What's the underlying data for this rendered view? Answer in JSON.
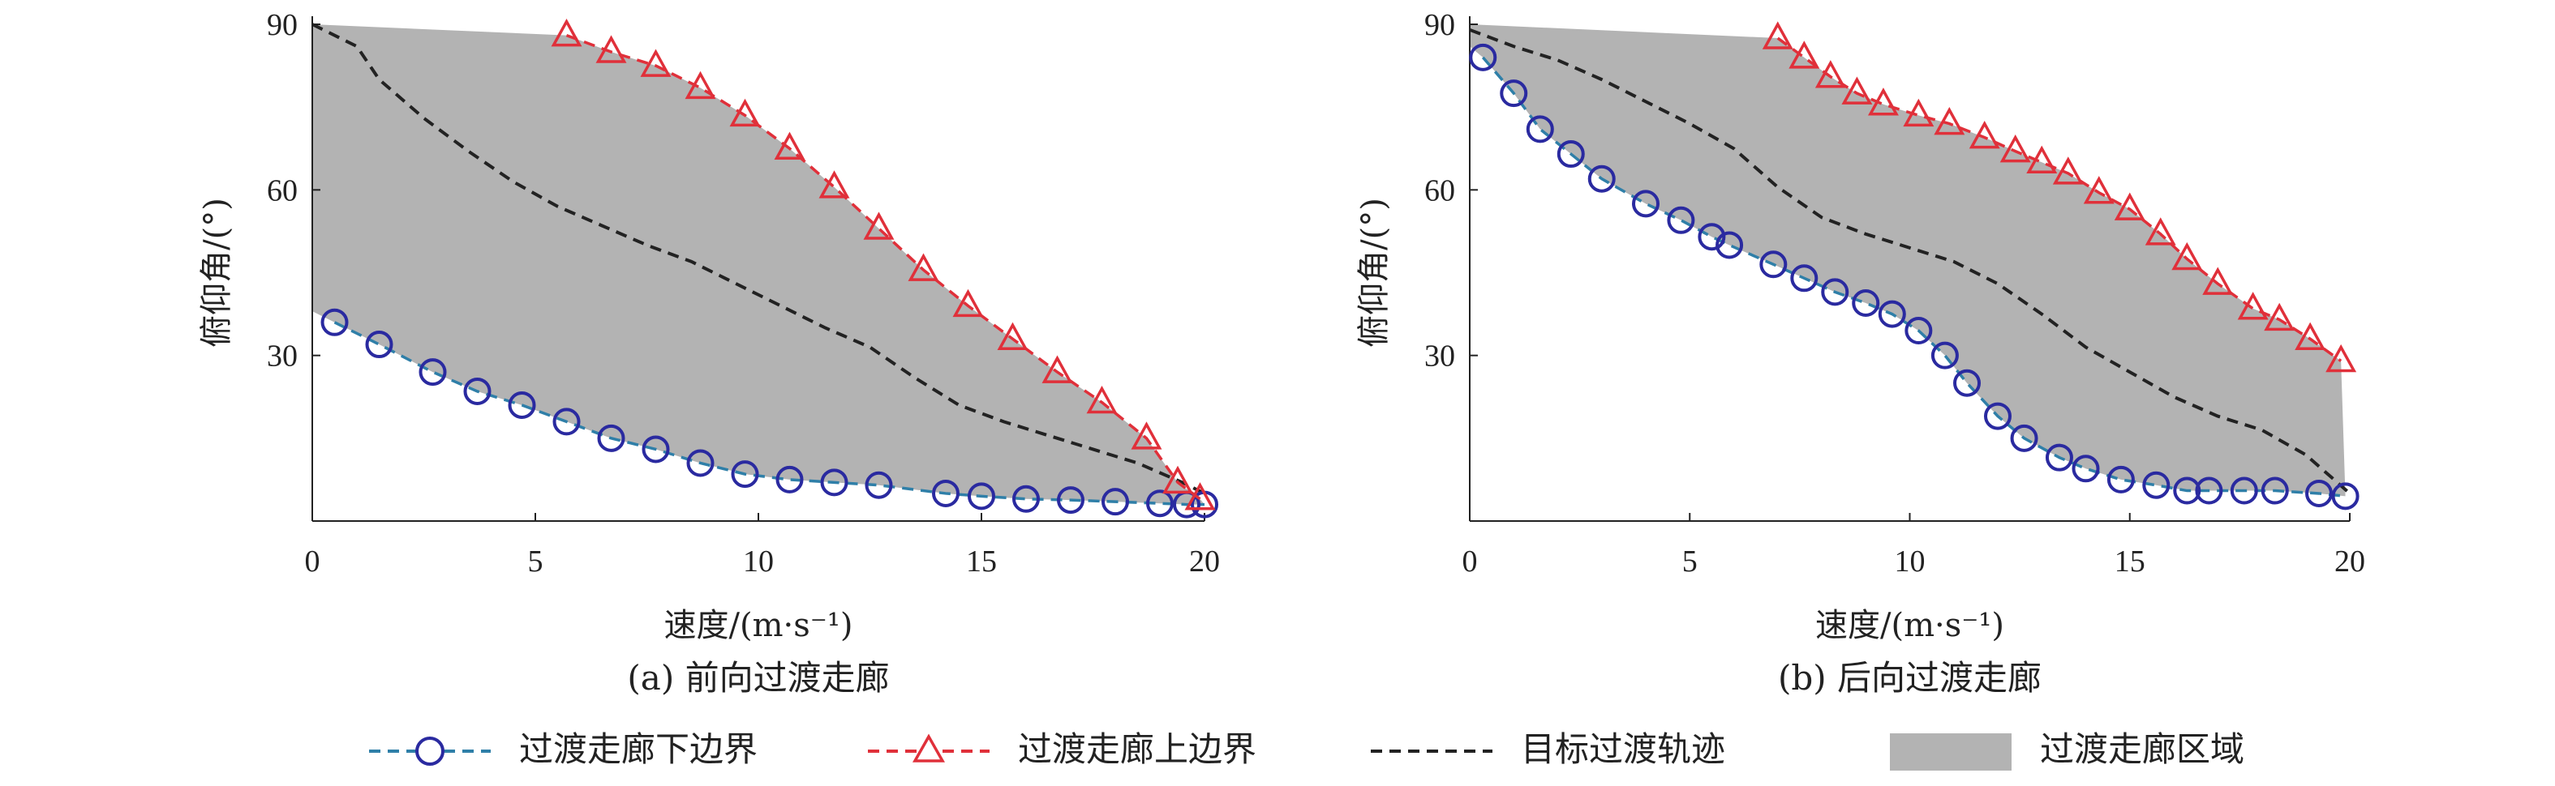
{
  "figure": {
    "legend": [
      {
        "key": "lower",
        "label": "过渡走廊下边界",
        "marker": "circle",
        "line_style": "dashed",
        "color": "#2a2aa0",
        "line_color": "#2f7fa8"
      },
      {
        "key": "upper",
        "label": "过渡走廊上边界",
        "marker": "triangle",
        "line_style": "dashed",
        "color": "#e0303a",
        "line_color": "#e0303a"
      },
      {
        "key": "target",
        "label": "目标过渡轨迹",
        "marker": "none",
        "line_style": "dashed",
        "color": "#222222"
      },
      {
        "key": "region",
        "label": "过渡走廊区域",
        "marker": "patch",
        "color": "#b3b3b3"
      }
    ]
  },
  "chart_data": [
    {
      "type": "line",
      "caption": "(a) 前向过渡走廊",
      "xlabel": "速度/(m·s⁻¹)",
      "ylabel": "俯仰角/(°)",
      "xlim": [
        0,
        20
      ],
      "ylim": [
        0,
        90
      ],
      "xticks": [
        "0",
        "5",
        "10",
        "15",
        "20"
      ],
      "yticks": [
        "30",
        "60",
        "90"
      ],
      "grid": false,
      "series": [
        {
          "name": "过渡走廊下边界",
          "x": [
            0.5,
            1.5,
            2.7,
            3.7,
            4.7,
            5.7,
            6.7,
            7.7,
            8.7,
            9.7,
            10.7,
            11.7,
            12.7,
            14.2,
            15.0,
            16.0,
            17.0,
            18.0,
            19.0,
            19.6,
            20.0
          ],
          "y": [
            36,
            32,
            27,
            23.5,
            21,
            18,
            15,
            13,
            10.5,
            8.5,
            7.5,
            7,
            6.5,
            5,
            4.5,
            4,
            3.8,
            3.5,
            3.2,
            3,
            3
          ]
        },
        {
          "name": "过渡走廊上边界",
          "x": [
            5.7,
            6.7,
            7.7,
            8.7,
            9.7,
            10.7,
            11.7,
            12.7,
            13.7,
            14.7,
            15.7,
            16.7,
            17.7,
            18.7,
            19.4,
            19.9
          ],
          "y": [
            88,
            85,
            82.5,
            78.5,
            73.5,
            67.5,
            60.5,
            53,
            45.5,
            39,
            33,
            27,
            21.5,
            15,
            7,
            4
          ]
        },
        {
          "name": "目标过渡轨迹",
          "x": [
            0,
            1.0,
            1.5,
            2.5,
            3.5,
            4.5,
            5.5,
            6.5,
            7.5,
            8.5,
            9.5,
            10.5,
            11.5,
            12.5,
            13.5,
            14.5,
            15.5,
            16.5,
            17.5,
            18.5,
            19.5,
            20.0
          ],
          "y": [
            90,
            86,
            80,
            73,
            67,
            61.5,
            57,
            53.5,
            50,
            47,
            43,
            39,
            35,
            31.5,
            26,
            21,
            18,
            15.5,
            13,
            10.5,
            7,
            5
          ]
        }
      ]
    },
    {
      "type": "line",
      "caption": "(b) 后向过渡走廊",
      "xlabel": "速度/(m·s⁻¹)",
      "ylabel": "俯仰角/(°)",
      "xlim": [
        0,
        20
      ],
      "ylim": [
        0,
        90
      ],
      "xticks": [
        "0",
        "5",
        "10",
        "15",
        "20"
      ],
      "yticks": [
        "30",
        "60",
        "90"
      ],
      "grid": false,
      "series": [
        {
          "name": "过渡走廊下边界",
          "x": [
            0.3,
            1.0,
            1.6,
            2.3,
            3.0,
            4.0,
            4.8,
            5.5,
            5.9,
            6.9,
            7.6,
            8.3,
            9.0,
            9.6,
            10.2,
            10.8,
            11.3,
            12.0,
            12.6,
            13.4,
            14.0,
            14.8,
            15.6,
            16.3,
            16.8,
            17.6,
            18.3,
            19.3,
            19.9
          ],
          "y": [
            84,
            77.5,
            71,
            66.5,
            62,
            57.5,
            54.5,
            51.5,
            50,
            46.5,
            44,
            41.5,
            39.5,
            37.5,
            34.5,
            30,
            25,
            19,
            15,
            11.5,
            9.5,
            7.5,
            6.5,
            5.5,
            5.5,
            5.5,
            5.5,
            5,
            4.5
          ]
        },
        {
          "name": "过渡走廊上边界",
          "x": [
            7.0,
            7.6,
            8.2,
            8.8,
            9.4,
            10.2,
            10.9,
            11.7,
            12.4,
            13.0,
            13.6,
            14.3,
            15.0,
            15.7,
            16.3,
            17.0,
            17.8,
            18.4,
            19.1,
            19.8
          ],
          "y": [
            87.5,
            84,
            80.5,
            77.5,
            75.5,
            73.5,
            72,
            69.5,
            67,
            65,
            63,
            59.5,
            56.5,
            52,
            47.5,
            43,
            38.5,
            36.5,
            33,
            29
          ]
        },
        {
          "name": "目标过渡轨迹",
          "x": [
            0,
            1.0,
            2.0,
            3.0,
            4.0,
            5.0,
            6.0,
            7.0,
            8.0,
            9.0,
            10.0,
            11.0,
            12.0,
            13.0,
            14.0,
            15.0,
            16.0,
            17.0,
            18.0,
            19.0,
            20.0
          ],
          "y": [
            89,
            86,
            83.5,
            80,
            76,
            72,
            67.5,
            60.5,
            55,
            52,
            49.5,
            47,
            43,
            37.5,
            31.5,
            27,
            22.5,
            19,
            16.5,
            12,
            5
          ]
        }
      ]
    }
  ]
}
